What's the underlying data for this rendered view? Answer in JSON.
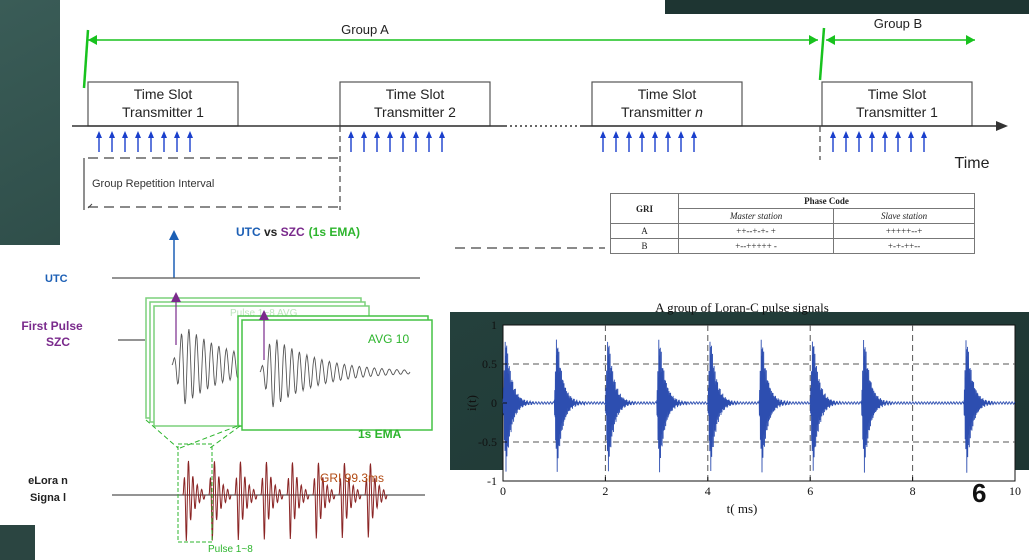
{
  "colors": {
    "green": "#18c21e",
    "blue": "#1a3fcc",
    "dark_teal": "#2d4a46",
    "utc_blue": "#1c5fb5",
    "szc_purple": "#7a2a8c",
    "ema_green": "#2db52d",
    "pulse_red": "#8a2424",
    "plot_blue": "#2d4eb0"
  },
  "timeline": {
    "group_a": "Group A",
    "group_b": "Group B",
    "slots": [
      {
        "line1": "Time Slot",
        "line2": "Transmitter 1"
      },
      {
        "line1": "Time Slot",
        "line2": "Transmitter 2"
      },
      {
        "line1": "Time Slot",
        "line2": "Transmitter ",
        "italic": "n"
      },
      {
        "line1": "Time Slot",
        "line2": "Transmitter 1"
      }
    ],
    "time_label": "Time",
    "gri_label": "Group Repetition Interval"
  },
  "phase_table": {
    "header_gri": "GRI",
    "header_phase": "Phase Code",
    "sub_master": "Master station",
    "sub_slave": "Slave station",
    "rows": [
      {
        "gri": "A",
        "master": "++--+-+- +",
        "slave": "+++++--+"
      },
      {
        "gri": "B",
        "master": "+--+++++ -",
        "slave": "+-+-++--"
      }
    ]
  },
  "elorandiagram": {
    "title_utc": "UTC",
    "title_vs": " vs ",
    "title_szc": "SZC",
    "title_ema": "(1s EMA)",
    "utc_label": "UTC",
    "first_pulse_label_1": "First Pulse",
    "first_pulse_label_2": "SZC",
    "pulse_avg_label": "Pulse 1~8 AVG",
    "avg10_label": "AVG 10",
    "ema_label": "1s EMA",
    "gri_label": "GRI 99.3ms",
    "eloran_label_1": "eLora n",
    "eloran_label_2": "Signa l",
    "pulse18_label": "Pulse 1~8"
  },
  "chart_data": {
    "type": "line",
    "title": "A group of Loran-C pulse signals",
    "xlabel": "t( ms)",
    "ylabel": "i(t)",
    "xlim": [
      0,
      10
    ],
    "ylim": [
      -1,
      1
    ],
    "xticks": [
      0,
      2,
      4,
      6,
      8,
      10
    ],
    "yticks": [
      1,
      0.5,
      0,
      -0.5,
      -1
    ],
    "ytick_labels": [
      "1",
      "0.5",
      "0",
      "-0.5",
      "-1"
    ],
    "pulse_starts_ms": [
      0,
      1,
      2,
      3,
      4,
      5,
      6,
      7,
      9
    ],
    "pulse_amplitude": 0.95,
    "dashed_hgrid": [
      0.5,
      -0.5
    ],
    "dashed_vgrid": [
      2,
      4,
      6,
      8
    ]
  },
  "slide_number": "6"
}
